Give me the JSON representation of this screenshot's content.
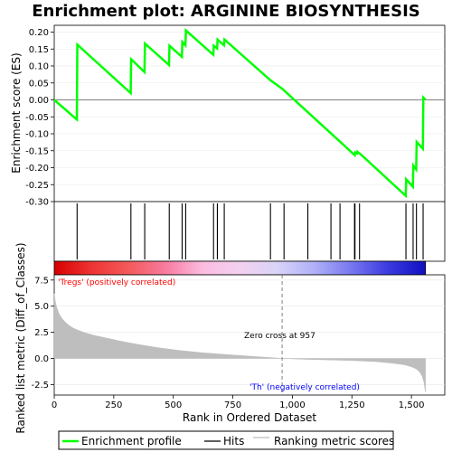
{
  "chart_data": {
    "type": "line",
    "title": "Enrichment plot: ARGININE BIOSYNTHESIS",
    "n_genes": 1559,
    "enrichment_profile": {
      "name": "Enrichment profile",
      "ylabel": "Enrichment score (ES)",
      "ylim": [
        -0.3,
        0.22
      ],
      "yticks": [
        -0.3,
        -0.25,
        -0.2,
        -0.15,
        -0.1,
        -0.05,
        0.0,
        0.05,
        0.1,
        0.15,
        0.2
      ],
      "ytick_labels": [
        "-0.30",
        "-0.25",
        "-0.20",
        "-0.15",
        "-0.10",
        "-0.05",
        "0.00",
        "0.05",
        "0.10",
        "0.15",
        "0.20"
      ],
      "points": [
        [
          0,
          0.0
        ],
        [
          95,
          -0.058
        ],
        [
          97,
          0.163
        ],
        [
          321,
          0.02
        ],
        [
          323,
          0.12
        ],
        [
          379,
          0.082
        ],
        [
          381,
          0.166
        ],
        [
          482,
          0.103
        ],
        [
          484,
          0.16
        ],
        [
          536,
          0.127
        ],
        [
          538,
          0.171
        ],
        [
          551,
          0.161
        ],
        [
          553,
          0.205
        ],
        [
          668,
          0.133
        ],
        [
          670,
          0.16
        ],
        [
          684,
          0.152
        ],
        [
          686,
          0.178
        ],
        [
          713,
          0.161
        ],
        [
          715,
          0.178
        ],
        [
          908,
          0.058
        ],
        [
          957,
          0.033
        ],
        [
          1262,
          -0.163
        ],
        [
          1264,
          -0.155
        ],
        [
          1271,
          -0.158
        ],
        [
          1273,
          -0.153
        ],
        [
          1281,
          -0.158
        ],
        [
          1283,
          -0.158
        ],
        [
          1476,
          -0.283
        ],
        [
          1478,
          -0.234
        ],
        [
          1506,
          -0.256
        ],
        [
          1508,
          -0.194
        ],
        [
          1520,
          -0.205
        ],
        [
          1522,
          -0.124
        ],
        [
          1548,
          -0.144
        ],
        [
          1550,
          0.007
        ],
        [
          1559,
          0.001
        ]
      ]
    },
    "hits": {
      "name": "Hits",
      "positions": [
        96,
        322,
        380,
        483,
        537,
        552,
        669,
        685,
        714,
        908,
        965,
        1065,
        1162,
        1200,
        1261,
        1263,
        1282,
        1477,
        1507,
        1521,
        1549
      ]
    },
    "ranking_metric": {
      "name": "Ranking metric scores",
      "ylabel": "Ranked list metric (Diff_of_Classes)",
      "ylim": [
        -3.5,
        8.0
      ],
      "yticks": [
        -2.5,
        0.0,
        2.5,
        5.0,
        7.5
      ],
      "ytick_labels": [
        "-2.5",
        "0.0",
        "2.5",
        "5.0",
        "7.5"
      ],
      "curve": [
        [
          0,
          6.2
        ],
        [
          5,
          5.4
        ],
        [
          10,
          4.9
        ],
        [
          20,
          4.3
        ],
        [
          30,
          3.9
        ],
        [
          45,
          3.5
        ],
        [
          60,
          3.2
        ],
        [
          80,
          2.9
        ],
        [
          100,
          2.7
        ],
        [
          130,
          2.45
        ],
        [
          170,
          2.2
        ],
        [
          220,
          1.95
        ],
        [
          280,
          1.65
        ],
        [
          350,
          1.35
        ],
        [
          430,
          1.05
        ],
        [
          520,
          0.78
        ],
        [
          620,
          0.55
        ],
        [
          720,
          0.38
        ],
        [
          820,
          0.22
        ],
        [
          900,
          0.1
        ],
        [
          957,
          0.0
        ],
        [
          1050,
          -0.08
        ],
        [
          1150,
          -0.14
        ],
        [
          1250,
          -0.2
        ],
        [
          1350,
          -0.3
        ],
        [
          1420,
          -0.45
        ],
        [
          1470,
          -0.6
        ],
        [
          1500,
          -0.8
        ],
        [
          1520,
          -1.0
        ],
        [
          1535,
          -1.3
        ],
        [
          1545,
          -1.7
        ],
        [
          1552,
          -2.2
        ],
        [
          1556,
          -2.8
        ],
        [
          1559,
          -3.2
        ]
      ],
      "xlabel": "Rank in Ordered Dataset",
      "xlim": [
        0,
        1640
      ],
      "xticks": [
        0,
        250,
        500,
        750,
        1000,
        1250,
        1500
      ],
      "xtick_labels": [
        "0",
        "250",
        "500",
        "750",
        "1,000",
        "1,250",
        "1,500"
      ]
    },
    "zero_cross": {
      "position": 957,
      "label": "Zero cross at 957"
    },
    "pos_label": "'Tregs' (positively correlated)",
    "neg_label": "'Th' (negatively correlated)",
    "legend": {
      "placement": "bottom",
      "entries": [
        "Enrichment profile",
        "Hits",
        "Ranking metric scores"
      ]
    },
    "colors": {
      "profile": "#00ff00",
      "hit": "#000000",
      "zero_line": "#808080",
      "metric_fill": "#bebebe",
      "pos_label": "#ff0000",
      "neg_label": "#0000ff",
      "legend_border": "#000000",
      "heatbar": [
        "#d80000",
        "#ee3333",
        "#f45a5a",
        "#f87ba0",
        "#fbbce0",
        "#f3d0f0",
        "#d8d4f8",
        "#b0b0f8",
        "#7777f0",
        "#3a3ae0",
        "#1010c0"
      ]
    }
  }
}
